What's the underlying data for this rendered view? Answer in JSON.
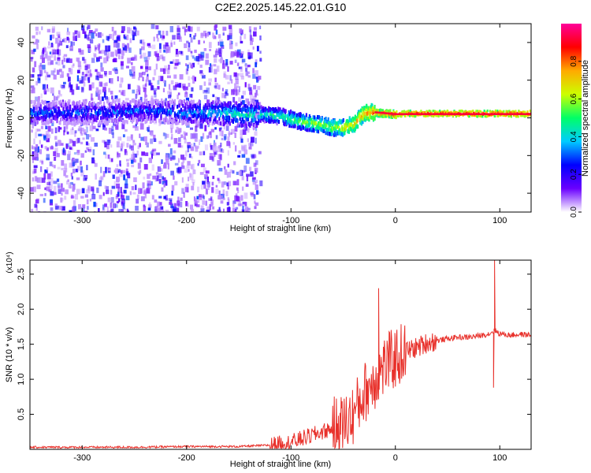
{
  "title": "C2E2.2025.145.22.01.G10",
  "chart_data": [
    {
      "type": "heatmap",
      "xlabel": "Height of straight line (km)",
      "ylabel": "Frequency (Hz)",
      "xlim": [
        -350,
        130
      ],
      "ylim": [
        -50,
        50
      ],
      "x_ticks": [
        -300,
        -200,
        -100,
        0,
        100
      ],
      "y_ticks": [
        -40,
        -20,
        0,
        20,
        40
      ],
      "grid": false,
      "colorbar": {
        "label": "Normalized spectral amplitude",
        "range": [
          0,
          1
        ],
        "ticks": [
          "0.0",
          "0.2",
          "0.4",
          "0.6",
          "0.8"
        ],
        "colors": [
          "#ffffff",
          "#6a00ff",
          "#0000ff",
          "#00ccff",
          "#00ff66",
          "#ccff00",
          "#ffaa00",
          "#ff0000",
          "#ff0099"
        ]
      },
      "ridge": {
        "x": [
          -320,
          -280,
          -240,
          -200,
          -170,
          -150,
          -130,
          -110,
          -90,
          -75,
          -60,
          -50,
          -40,
          -30,
          -20,
          0,
          50,
          100,
          130
        ],
        "y": [
          3,
          3,
          4,
          3,
          3,
          2,
          2,
          1,
          -2,
          -3,
          -5,
          -5,
          -3,
          3,
          3,
          2,
          2,
          2,
          2
        ],
        "amplitude": [
          0.3,
          0.3,
          0.3,
          0.35,
          0.4,
          0.45,
          0.45,
          0.5,
          0.55,
          0.6,
          0.6,
          0.7,
          0.7,
          0.75,
          0.8,
          0.85,
          0.9,
          0.9,
          0.9
        ]
      },
      "noise_region": {
        "x_range": [
          -350,
          -130
        ],
        "note_amplitude": [
          0.05,
          0.3
        ]
      }
    },
    {
      "type": "line",
      "xlabel": "Height of straight line (km)",
      "ylabel": "SNR (10 * v/v)",
      "yscale_label": "(x10⁴)",
      "xlim": [
        -350,
        130
      ],
      "ylim": [
        0,
        2.7
      ],
      "x_ticks": [
        -300,
        -200,
        -100,
        0,
        100
      ],
      "y_ticks": [
        "0.5",
        "1.0",
        "1.5",
        "2.0",
        "2.5"
      ],
      "y_tick_values": [
        0.5,
        1.0,
        1.5,
        2.0,
        2.5
      ],
      "color": "#e8302a",
      "series": [
        {
          "x": [
            -350,
            -300,
            -250,
            -200,
            -150,
            -120,
            -100,
            -80,
            -60,
            -50,
            -40,
            -30,
            -20,
            -15,
            -10,
            0,
            10,
            20,
            30,
            40,
            50,
            60,
            70,
            80,
            90,
            95,
            100,
            110,
            120,
            130
          ],
          "y": [
            0.03,
            0.03,
            0.03,
            0.04,
            0.04,
            0.06,
            0.1,
            0.2,
            0.3,
            0.35,
            0.5,
            0.8,
            1.0,
            1.1,
            1.2,
            1.3,
            1.4,
            1.45,
            1.52,
            1.55,
            1.58,
            1.6,
            1.6,
            1.62,
            1.65,
            1.7,
            1.65,
            1.63,
            1.64,
            1.63
          ],
          "spikes": [
            {
              "x": -16,
              "y": 2.3
            },
            {
              "x": 95,
              "y": 2.7
            },
            {
              "x": 94,
              "y": 0.88
            }
          ]
        }
      ]
    }
  ]
}
